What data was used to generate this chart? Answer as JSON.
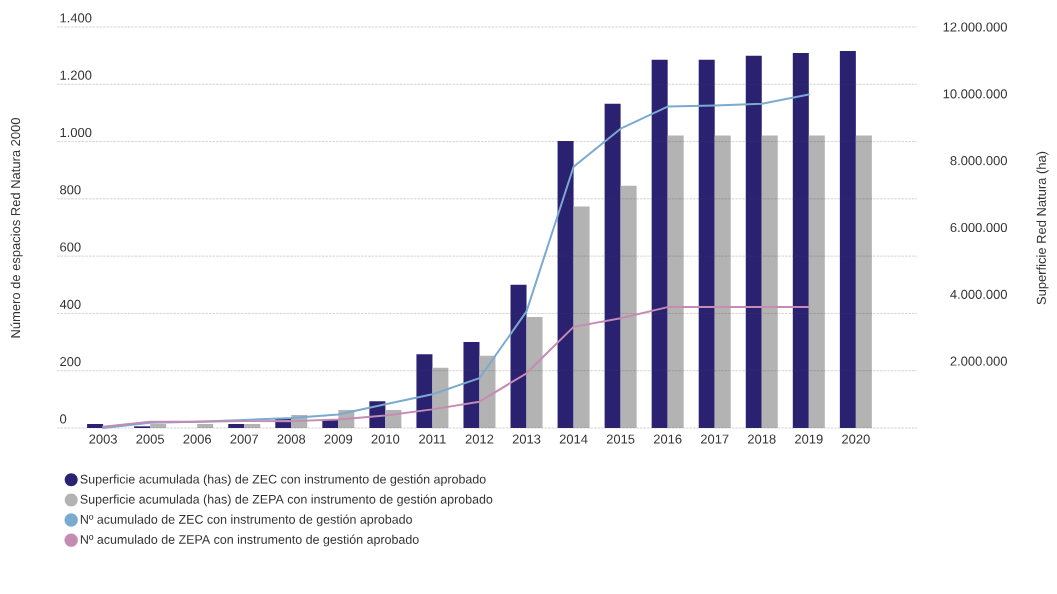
{
  "chart_data": {
    "type": "bar",
    "categories": [
      "2003",
      "2005",
      "2006",
      "2007",
      "2008",
      "2009",
      "2010",
      "2011",
      "2012",
      "2013",
      "2014",
      "2015",
      "2016",
      "2017",
      "2018",
      "2019",
      "2020"
    ],
    "series": [
      {
        "name": "Superficie acumulada (has) de ZEC con instrumento de gestión aprobado",
        "color": "#2b2171",
        "axis": "y2",
        "values": [
          120000,
          50000,
          null,
          120000,
          280000,
          250000,
          800000,
          2210000,
          2570000,
          4290000,
          8590000,
          9700000,
          11020000,
          11020000,
          11140000,
          11220000,
          11280000
        ]
      },
      {
        "name": "Superficie acumulada (has) de ZEPA con instrumento de gestión aprobado",
        "color": "#b3b3b3",
        "axis": "y2",
        "values": [
          null,
          120000,
          120000,
          120000,
          390000,
          540000,
          540000,
          1800000,
          2160000,
          3320000,
          6630000,
          7250000,
          8750000,
          8750000,
          8750000,
          8750000,
          8750000
        ]
      },
      {
        "name": "Nº acumulado de ZEC con instrumento de gestión aprobado",
        "type": "line",
        "color": "#7aaad0",
        "values": [
          0,
          18,
          22,
          28,
          35,
          47,
          83,
          118,
          174,
          407,
          912,
          1045,
          1122,
          1126,
          1132,
          1164,
          null
        ]
      },
      {
        "name": "Nº acumulado de ZEPA con instrumento de gestión aprobado",
        "type": "line",
        "color": "#c48bb3",
        "values": [
          4,
          22,
          22,
          24,
          24,
          30,
          44,
          65,
          92,
          191,
          353,
          383,
          422,
          422,
          422,
          422,
          null
        ]
      }
    ],
    "ylabel": "Número de espacios Red Natura 2000",
    "y2label": "Superficie Red Natura (ha)",
    "ylim": [
      0,
      1400
    ],
    "yticks": [
      {
        "value": 0,
        "label": "0"
      },
      {
        "value": 200,
        "label": "200"
      },
      {
        "value": 400,
        "label": "400"
      },
      {
        "value": 600,
        "label": "600"
      },
      {
        "value": 800,
        "label": "800"
      },
      {
        "value": 1000,
        "label": "1.000"
      },
      {
        "value": 1200,
        "label": "1.200"
      },
      {
        "value": 1400,
        "label": "1.400"
      }
    ],
    "y2lim": [
      0,
      12000000
    ],
    "y2ticks": [
      {
        "value": 2000000,
        "label": "2.000.000"
      },
      {
        "value": 4000000,
        "label": "4.000.000"
      },
      {
        "value": 6000000,
        "label": "6.000.000"
      },
      {
        "value": 8000000,
        "label": "8.000.000"
      },
      {
        "value": 10000000,
        "label": "10.000.000"
      },
      {
        "value": 12000000,
        "label": "12.000.000"
      }
    ],
    "grid": "y",
    "legend": "bottom",
    "marker": "none",
    "line_style": "solid"
  }
}
